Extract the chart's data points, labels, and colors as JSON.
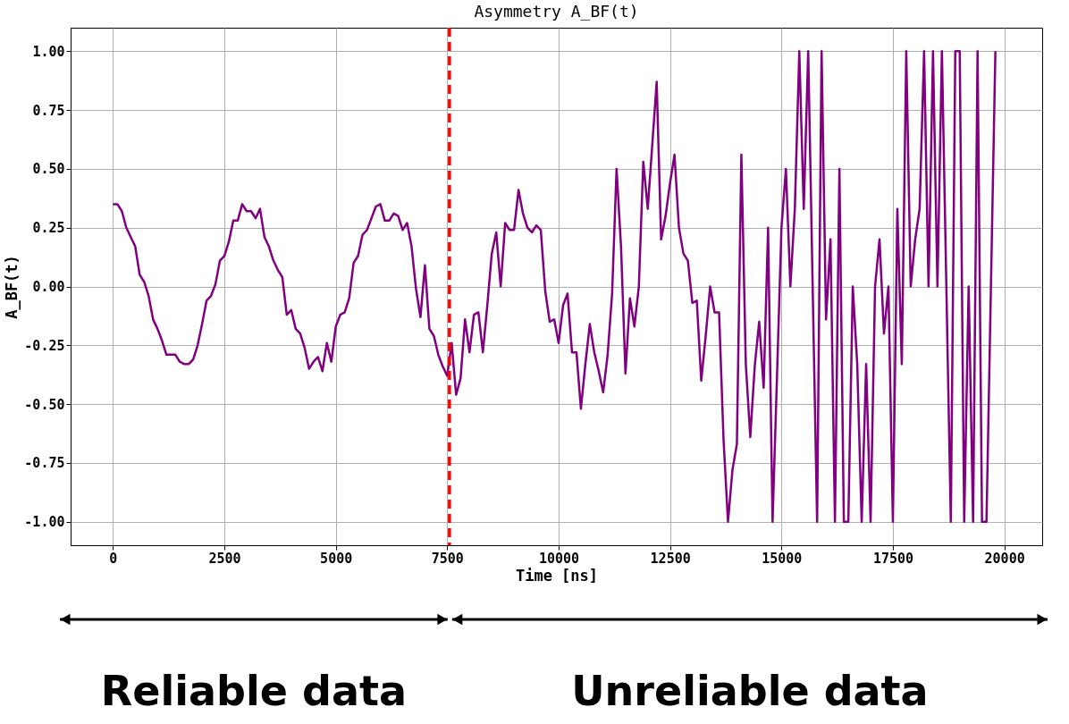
{
  "chart_data": {
    "type": "line",
    "title": "Asymmetry A_BF(t)",
    "xlabel": "Time [ns]",
    "ylabel": "A_BF(t)",
    "xlim": [
      -950,
      20850
    ],
    "ylim": [
      -1.1,
      1.1
    ],
    "xticks": [
      0,
      2500,
      5000,
      7500,
      10000,
      12500,
      15000,
      17500,
      20000
    ],
    "yticks": [
      {
        "value": -1,
        "label": "-1.00"
      },
      {
        "value": -0.75,
        "label": "-0.75"
      },
      {
        "value": -0.5,
        "label": "-0.50"
      },
      {
        "value": -0.25,
        "label": "-0.25"
      },
      {
        "value": 0,
        "label": "0.00"
      },
      {
        "value": 0.25,
        "label": "0.25"
      },
      {
        "value": 0.5,
        "label": "0.50"
      },
      {
        "value": 0.75,
        "label": "0.75"
      },
      {
        "value": 1,
        "label": "1.00"
      }
    ],
    "grid": true,
    "marker": "none",
    "line_style": "solid",
    "ref_lines": [
      {
        "axis": "x",
        "value": 7550,
        "color": "#ff0000",
        "line_style": "dashed"
      }
    ],
    "annotations": [
      "Reliable data",
      "Unreliable data"
    ],
    "x": [
      0,
      100,
      200,
      300,
      400,
      500,
      600,
      700,
      800,
      900,
      1000,
      1100,
      1200,
      1300,
      1400,
      1500,
      1600,
      1700,
      1800,
      1900,
      2000,
      2100,
      2200,
      2300,
      2400,
      2500,
      2600,
      2700,
      2800,
      2900,
      3000,
      3100,
      3200,
      3300,
      3400,
      3500,
      3600,
      3700,
      3800,
      3900,
      4000,
      4100,
      4200,
      4300,
      4400,
      4500,
      4600,
      4700,
      4800,
      4900,
      5000,
      5100,
      5200,
      5300,
      5400,
      5500,
      5600,
      5700,
      5800,
      5900,
      6000,
      6100,
      6200,
      6300,
      6400,
      6500,
      6600,
      6700,
      6800,
      6900,
      7000,
      7100,
      7200,
      7300,
      7400,
      7500,
      7600,
      7700,
      7800,
      7900,
      8000,
      8100,
      8200,
      8300,
      8400,
      8500,
      8600,
      8700,
      8800,
      8900,
      9000,
      9100,
      9200,
      9300,
      9400,
      9500,
      9600,
      9700,
      9800,
      9900,
      10000,
      10100,
      10200,
      10300,
      10400,
      10500,
      10600,
      10700,
      10800,
      10900,
      11000,
      11100,
      11200,
      11300,
      11400,
      11500,
      11600,
      11700,
      11800,
      11900,
      12000,
      12100,
      12200,
      12300,
      12400,
      12500,
      12600,
      12700,
      12800,
      12900,
      13000,
      13100,
      13200,
      13300,
      13400,
      13500,
      13600,
      13700,
      13800,
      13900,
      14000,
      14100,
      14200,
      14300,
      14400,
      14500,
      14600,
      14700,
      14800,
      14900,
      15000,
      15100,
      15200,
      15300,
      15400,
      15500,
      15600,
      15700,
      15800,
      15900,
      16000,
      16100,
      16200,
      16300,
      16400,
      16500,
      16600,
      16700,
      16800,
      16900,
      17000,
      17100,
      17200,
      17300,
      17400,
      17500,
      17600,
      17700,
      17800,
      17900,
      18000,
      18100,
      18200,
      18300,
      18400,
      18500,
      18600,
      18700,
      18800,
      18900,
      19000,
      19100,
      19200,
      19300,
      19400,
      19500,
      19600,
      19700,
      19800
    ],
    "series": [
      {
        "color": "#800080",
        "values": [
          0.35,
          0.35,
          0.32,
          0.25,
          0.21,
          0.17,
          0.05,
          0.02,
          -0.04,
          -0.14,
          -0.18,
          -0.23,
          -0.29,
          -0.29,
          -0.29,
          -0.32,
          -0.33,
          -0.33,
          -0.31,
          -0.25,
          -0.16,
          -0.06,
          -0.04,
          0.01,
          0.11,
          0.13,
          0.19,
          0.28,
          0.28,
          0.35,
          0.32,
          0.32,
          0.29,
          0.33,
          0.21,
          0.17,
          0.11,
          0.07,
          0.04,
          -0.12,
          -0.1,
          -0.18,
          -0.2,
          -0.26,
          -0.35,
          -0.32,
          -0.3,
          -0.36,
          -0.24,
          -0.32,
          -0.17,
          -0.12,
          -0.11,
          -0.05,
          0.1,
          0.13,
          0.22,
          0.24,
          0.29,
          0.34,
          0.35,
          0.28,
          0.28,
          0.31,
          0.3,
          0.24,
          0.27,
          0.17,
          -0.01,
          -0.13,
          0.09,
          -0.18,
          -0.21,
          -0.29,
          -0.34,
          -0.38,
          -0.24,
          -0.46,
          -0.39,
          -0.14,
          -0.28,
          -0.12,
          -0.11,
          -0.28,
          -0.08,
          0.14,
          0.23,
          0.0,
          0.27,
          0.24,
          0.24,
          0.41,
          0.31,
          0.25,
          0.23,
          0.26,
          0.24,
          -0.02,
          -0.15,
          -0.14,
          -0.24,
          -0.08,
          -0.03,
          -0.28,
          -0.28,
          -0.52,
          -0.33,
          -0.16,
          -0.28,
          -0.36,
          -0.45,
          -0.29,
          -0.03,
          0.5,
          0.17,
          -0.37,
          -0.05,
          -0.17,
          0.0,
          0.53,
          0.33,
          0.6,
          0.87,
          0.2,
          0.3,
          0.44,
          0.56,
          0.25,
          0.14,
          0.11,
          -0.07,
          -0.06,
          -0.4,
          -0.21,
          0.0,
          -0.11,
          -0.11,
          -0.65,
          -1.0,
          -0.78,
          -0.67,
          0.56,
          -0.33,
          -0.64,
          -0.34,
          -0.15,
          -0.43,
          0.25,
          -1.0,
          -0.38,
          0.25,
          0.5,
          0.0,
          0.33,
          1.0,
          0.33,
          1.0,
          0.0,
          -1.0,
          1.0,
          -0.14,
          0.2,
          -1.0,
          0.5,
          -1.0,
          -1.0,
          0.0,
          -0.33,
          -1.0,
          -0.33,
          -1.0,
          0.0,
          0.2,
          -0.2,
          0.0,
          -1.0,
          0.33,
          -0.33,
          1.0,
          0.0,
          0.2,
          0.33,
          1.0,
          0.0,
          1.0,
          0.0,
          1.0,
          0.0,
          -1.0,
          1.0,
          1.0,
          -1.0,
          0.0,
          -1.0,
          1.0,
          -1.0,
          -1.0,
          0.0,
          1.0
        ]
      }
    ]
  }
}
